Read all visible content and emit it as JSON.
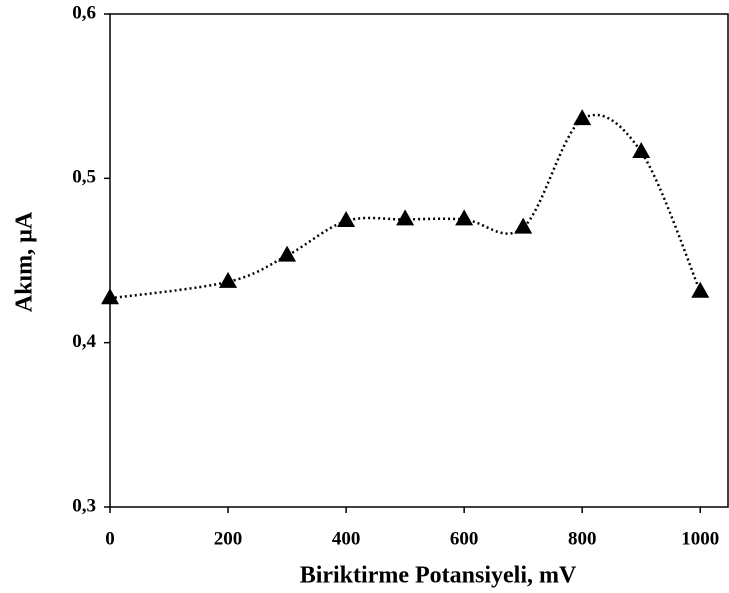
{
  "chart_data": {
    "type": "scatter",
    "x_label": "Biriktirme  Potansiyeli, mV",
    "y_label": "Akım, µA",
    "series": [
      {
        "name": "Akım",
        "color": "#000000",
        "x": [
          0,
          200,
          300,
          400,
          500,
          600,
          700,
          800,
          900,
          1000
        ],
        "values": [
          0.427,
          0.437,
          0.453,
          0.474,
          0.475,
          0.475,
          0.47,
          0.536,
          0.516,
          0.431
        ]
      }
    ],
    "xlim": [
      0,
      1047
    ],
    "xticks": [
      0,
      200,
      400,
      600,
      800,
      1000
    ],
    "ylim": [
      0.3,
      0.6
    ],
    "yticks": [
      {
        "value": 0.3,
        "label": "0,3"
      },
      {
        "value": 0.4,
        "label": "0,4"
      },
      {
        "value": 0.5,
        "label": "0,5"
      },
      {
        "value": 0.6,
        "label": "0,6"
      }
    ],
    "grid": false,
    "line_style": "dotted",
    "marker": "triangle"
  }
}
